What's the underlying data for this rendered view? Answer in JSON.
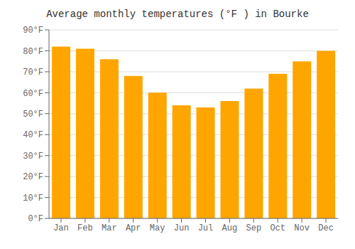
{
  "chart_data": {
    "type": "bar",
    "title": "Average monthly temperatures (°F ) in Bourke",
    "categories": [
      "Jan",
      "Feb",
      "Mar",
      "Apr",
      "May",
      "Jun",
      "Jul",
      "Aug",
      "Sep",
      "Oct",
      "Nov",
      "Dec"
    ],
    "values": [
      82,
      81,
      76,
      68,
      60,
      54,
      53,
      56,
      62,
      69,
      75,
      80
    ],
    "color": "#FFA500",
    "ylim": [
      0,
      90
    ],
    "yticks": [
      {
        "value": 0,
        "label": "0°F"
      },
      {
        "value": 10,
        "label": "10°F"
      },
      {
        "value": 20,
        "label": "20°F"
      },
      {
        "value": 30,
        "label": "30°F"
      },
      {
        "value": 40,
        "label": "40°F"
      },
      {
        "value": 50,
        "label": "50°F"
      },
      {
        "value": 60,
        "label": "60°F"
      },
      {
        "value": 70,
        "label": "70°F"
      },
      {
        "value": 80,
        "label": "80°F"
      },
      {
        "value": 90,
        "label": "90°F"
      }
    ],
    "grid": true
  }
}
